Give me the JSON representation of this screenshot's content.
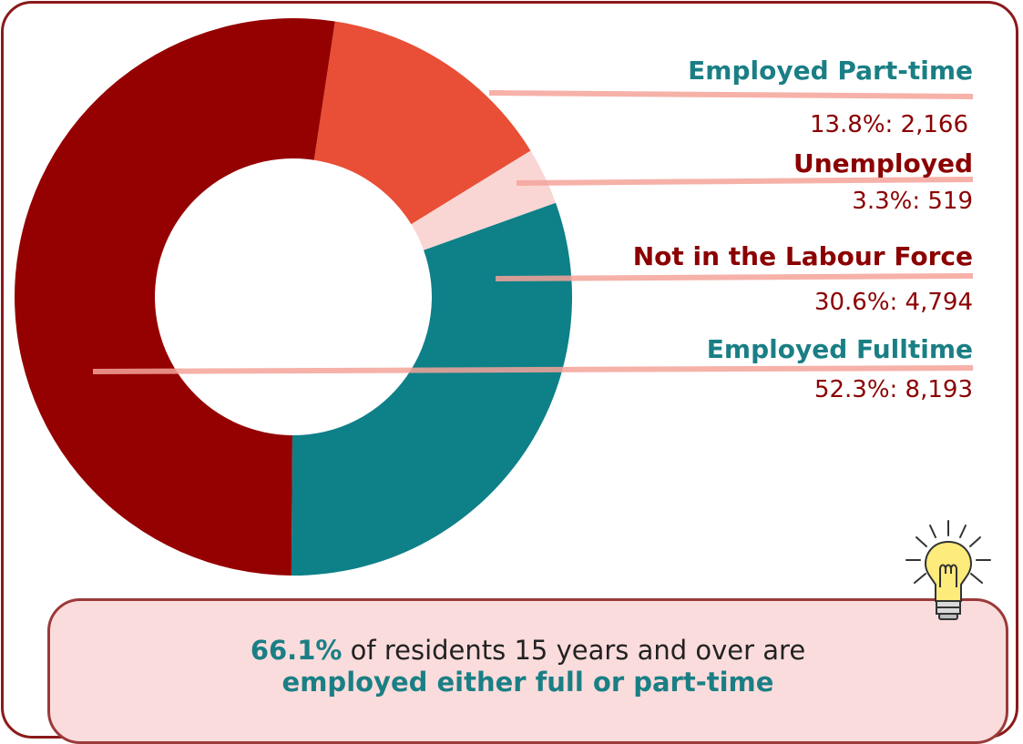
{
  "colors": {
    "fulltime": "#950000",
    "parttime": "#e84f36",
    "unemployed": "#f9d6d4",
    "not_in_labour_force": "#0e8088",
    "leader": "#f4a39a",
    "teal_text": "#1a7f85",
    "red_text": "#8b0000",
    "frame": "#8b1a1a",
    "callout_bg": "#fbdcdc"
  },
  "chart_data": {
    "type": "pie",
    "style": "donut",
    "categories": [
      "Employed Part-time",
      "Unemployed",
      "Not in the Labour Force",
      "Employed Fulltime"
    ],
    "values": [
      2166,
      519,
      4794,
      8193
    ],
    "percents": [
      13.8,
      3.3,
      30.6,
      52.3
    ],
    "value_labels": [
      "13.8%: 2,166",
      "3.3%: 519",
      "30.6%: 4,794",
      "52.3%: 8,193"
    ]
  },
  "callout": {
    "highlight": "66.1%",
    "text": " of residents 15 years and over are",
    "emphasis": "employed either full or part-time"
  },
  "icons": {
    "bulb": "lightbulb-icon"
  }
}
